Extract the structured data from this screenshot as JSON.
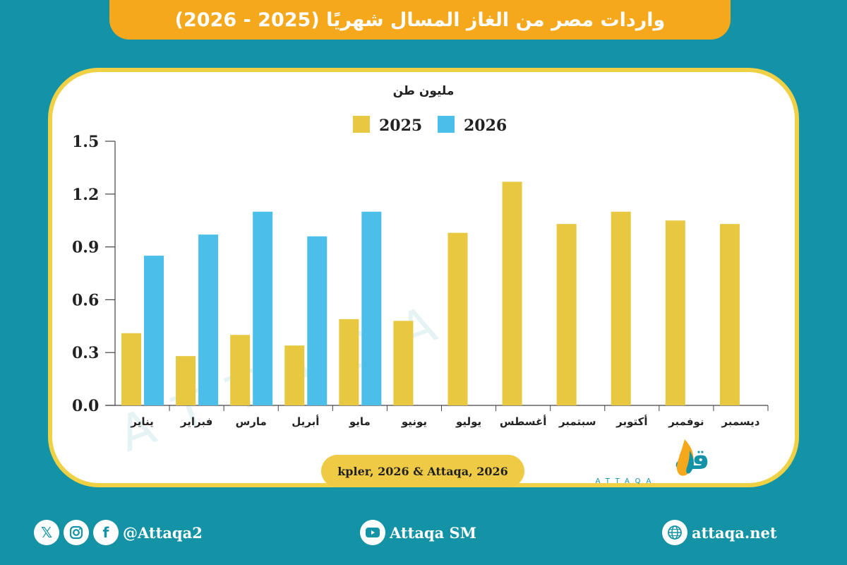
{
  "title": "واردات مصر من الغاز المسال شهريًا (2025 - 2026)",
  "colors": {
    "background": "#1493a6",
    "banner": "#f6a81d",
    "card_border": "#f0d146",
    "series_2025": "#e8c840",
    "series_2026": "#4bbfe9"
  },
  "chart_data": {
    "type": "bar",
    "unit_label": "مليون طن",
    "categories": [
      "يناير",
      "فبراير",
      "مارس",
      "أبريل",
      "مايو",
      "يونيو",
      "يوليو",
      "أغسطس",
      "سبتمبر",
      "أكتوبر",
      "نوفمبر",
      "ديسمبر"
    ],
    "series": [
      {
        "name": "2025",
        "color": "#e8c840",
        "values": [
          0.41,
          0.28,
          0.4,
          0.34,
          0.49,
          0.48,
          0.98,
          1.27,
          1.03,
          1.1,
          1.05,
          1.03
        ]
      },
      {
        "name": "2026",
        "color": "#4bbfe9",
        "values": [
          0.85,
          0.97,
          1.1,
          0.96,
          1.1,
          null,
          null,
          null,
          null,
          null,
          null,
          null
        ]
      }
    ],
    "ylim": [
      0,
      1.5
    ],
    "yticks": [
      "0.0",
      "0.3",
      "0.6",
      "0.9",
      "1.2",
      "1.5"
    ],
    "legend": "top-center"
  },
  "source": "kpler, 2026 & Attaqa, 2026",
  "logo": {
    "arabic": "الطاقة",
    "latin": "ATTAQA"
  },
  "footer": {
    "social_handle": "@Attaqa2",
    "youtube": "Attaqa SM",
    "website": "attaqa.net",
    "icons": [
      "x-icon",
      "instagram-icon",
      "facebook-icon",
      "youtube-icon",
      "globe-icon"
    ]
  }
}
